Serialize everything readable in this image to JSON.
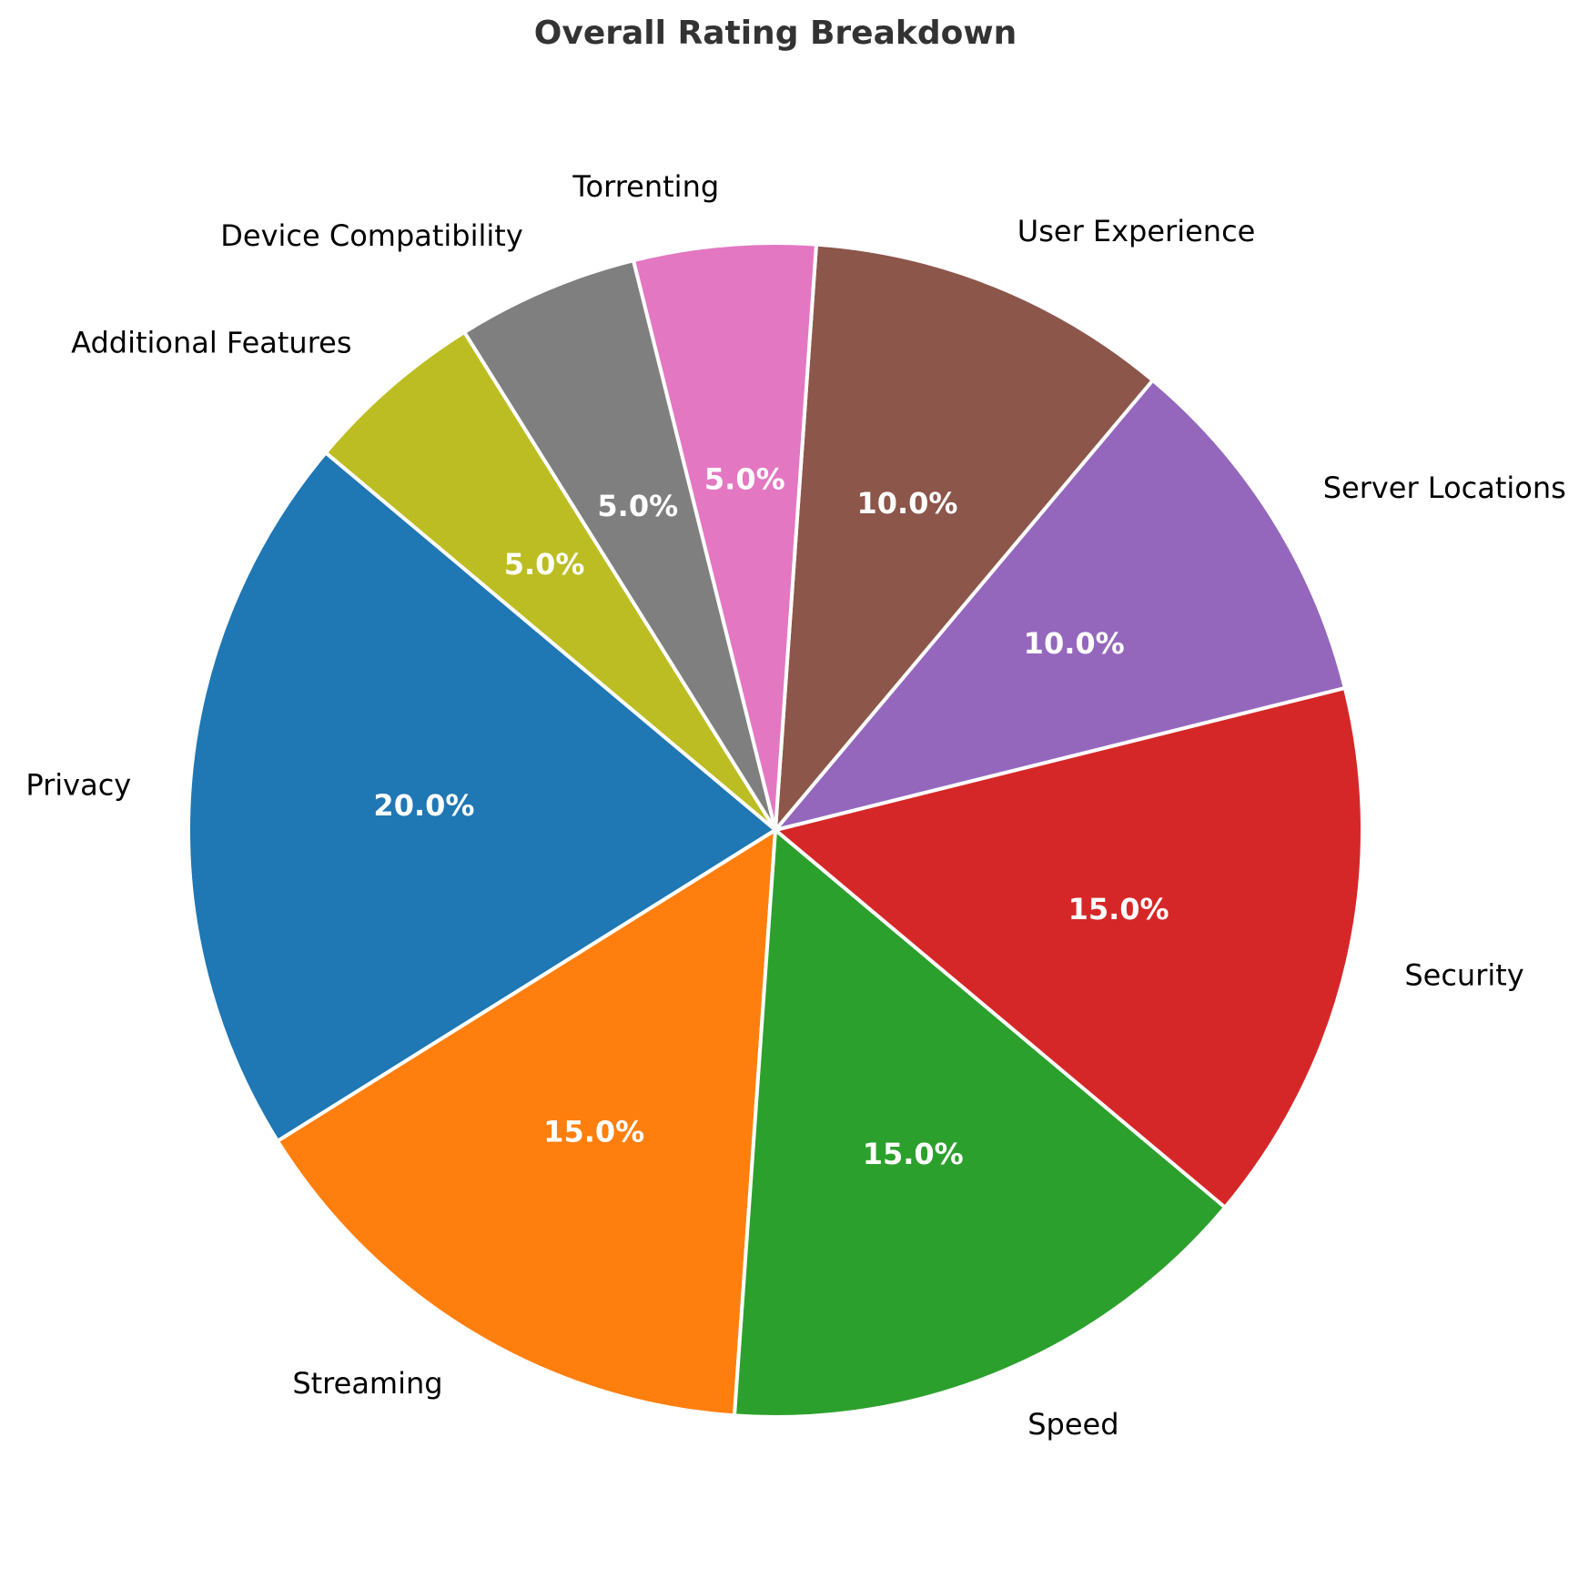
{
  "chart_data": {
    "type": "pie",
    "title": "Overall Rating Breakdown",
    "categories": [
      "Privacy",
      "Streaming",
      "Speed",
      "Security",
      "Server Locations",
      "User Experience",
      "Torrenting",
      "Device Compatibility",
      "Additional Features"
    ],
    "values": [
      20,
      15,
      15,
      15,
      10,
      10,
      5,
      5,
      5
    ],
    "percent_labels": [
      "20.0%",
      "15.0%",
      "15.0%",
      "15.0%",
      "10.0%",
      "10.0%",
      "5.0%",
      "5.0%",
      "5.0%"
    ],
    "colors": [
      "#1f77b4",
      "#ff7f0e",
      "#2ca02c",
      "#d62728",
      "#9467bd",
      "#8c564b",
      "#e377c2",
      "#7f7f7f",
      "#bcbd22"
    ],
    "start_angle_deg": 140,
    "direction": "counterclockwise",
    "edge_color": "#ffffff"
  }
}
